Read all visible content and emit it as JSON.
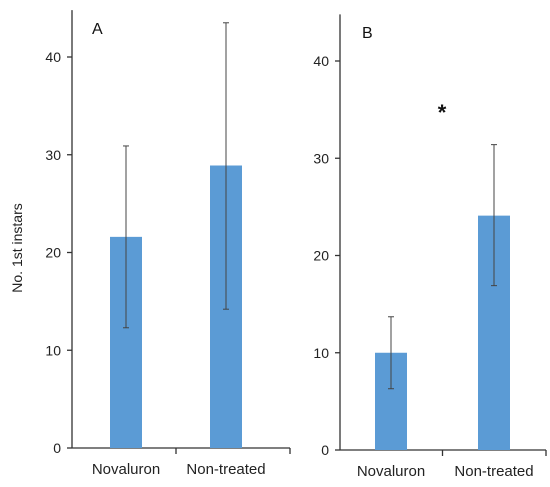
{
  "chart_data": [
    {
      "type": "bar",
      "panel_label": "A",
      "ylabel": "No. 1st instars",
      "categories": [
        "Novaluron",
        "Non-treated"
      ],
      "series": [
        {
          "values": [
            21.6,
            28.9
          ],
          "error_low": [
            12.3,
            14.2
          ],
          "error_high": [
            30.9,
            43.5
          ]
        }
      ],
      "ylim": [
        0,
        45
      ],
      "yticks": [
        0,
        10,
        20,
        30,
        40
      ],
      "annotation": "",
      "bar_color": "#5b9bd5"
    },
    {
      "type": "bar",
      "panel_label": "B",
      "ylabel": "",
      "categories": [
        "Novaluron",
        "Non-treated"
      ],
      "series": [
        {
          "values": [
            10.0,
            24.1
          ],
          "error_low": [
            6.3,
            16.9
          ],
          "error_high": [
            13.7,
            31.4
          ]
        }
      ],
      "ylim": [
        0,
        45
      ],
      "yticks": [
        0,
        10,
        20,
        30,
        40
      ],
      "annotation": "*",
      "bar_color": "#5b9bd5"
    }
  ]
}
